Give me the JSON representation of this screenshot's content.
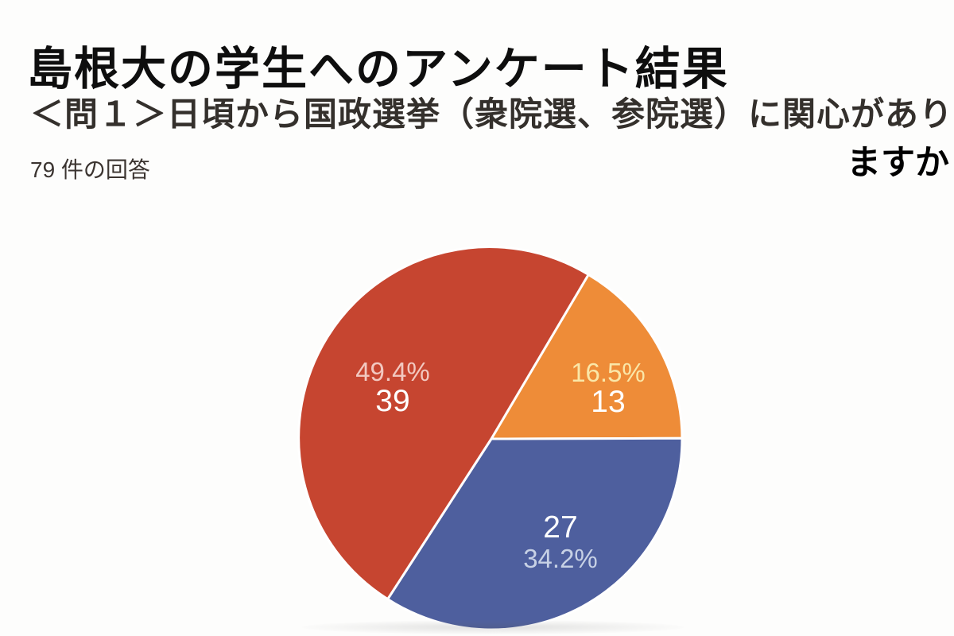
{
  "header": {
    "title": "島根大の学生へのアンケート結果"
  },
  "question": {
    "line1": "＜問１＞日頃から国政選挙（衆院選、参院選）に関心があり",
    "line2": "ますか"
  },
  "responses_label": "79 件の回答",
  "chart_data": {
    "type": "pie",
    "title": "＜問１＞日頃から国政選挙（衆院選、参院選）に関心がありますか",
    "total_responses": 79,
    "start_angle_deg": 30.6,
    "clockwise": true,
    "legend": "none",
    "slices": [
      {
        "name": "orange",
        "value": 13,
        "percent": 16.5,
        "percent_label": "16.5%",
        "count_label": "13",
        "color": "#ee8c38",
        "percent_text_color": "#fae7a8",
        "count_text_color": "#ffffff",
        "count_first": false
      },
      {
        "name": "blue",
        "value": 27,
        "percent": 34.2,
        "percent_label": "34.2%",
        "count_label": "27",
        "color": "#4e5f9e",
        "percent_text_color": "#c7d1e5",
        "count_text_color": "#ffffff",
        "count_first": true
      },
      {
        "name": "red",
        "value": 39,
        "percent": 49.4,
        "percent_label": "49.4%",
        "count_label": "39",
        "color": "#c64530",
        "percent_text_color": "#f2c8c0",
        "count_text_color": "#ffffff",
        "count_first": false
      }
    ]
  }
}
